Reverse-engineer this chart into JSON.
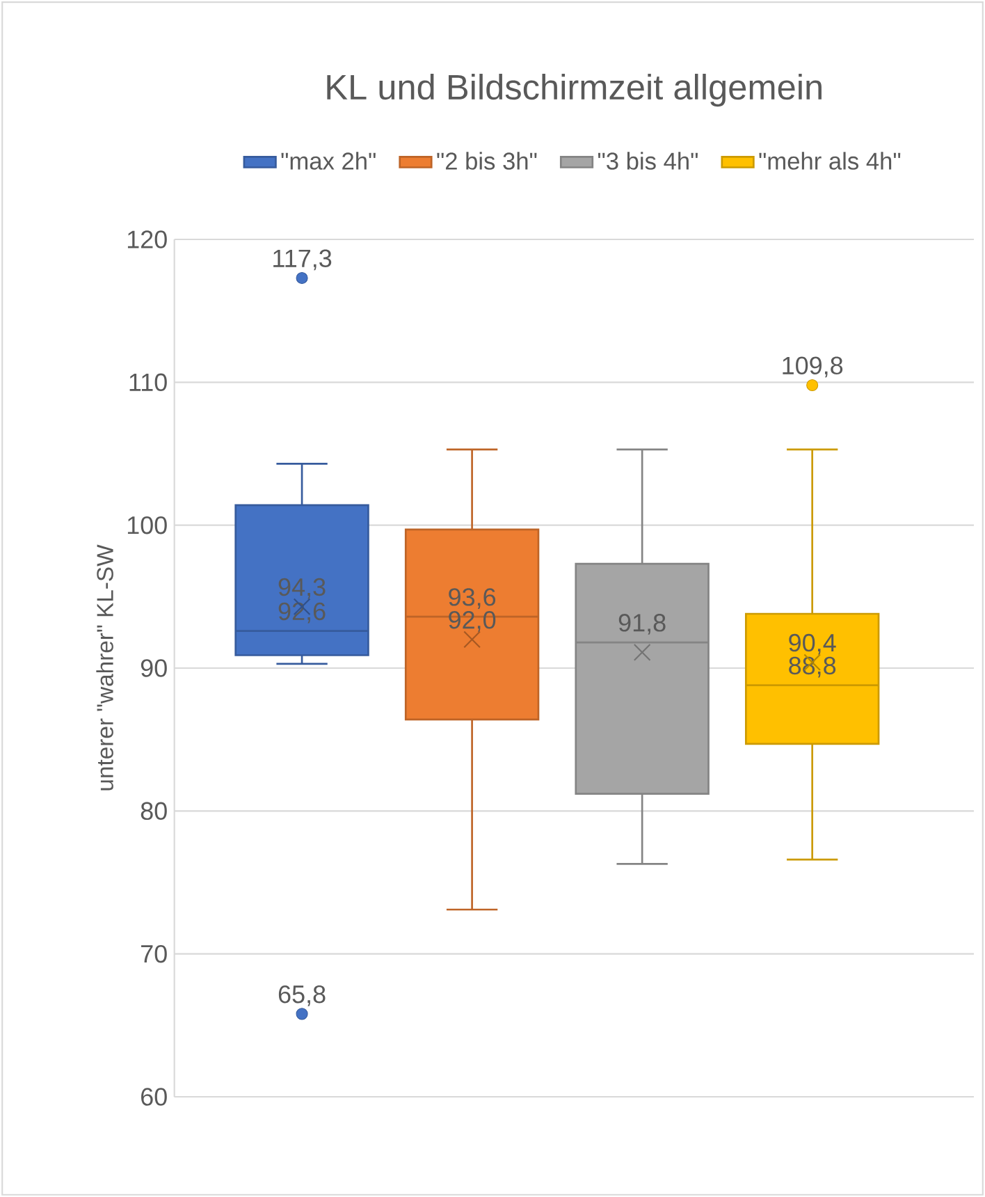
{
  "chart_data": {
    "type": "box",
    "title": "KL und Bildschirmzeit allgemein",
    "ylabel": "unterer \"wahrer\" KL-SW",
    "categories": [
      null
    ],
    "series": [
      {
        "name": "\"max 2h\"",
        "color": "#4472c4",
        "boxes": [
          {
            "low": 90.3,
            "q1": 90.9,
            "median": 92.6,
            "q3": 101.4,
            "high": 104.3,
            "mean": 94.3,
            "outliers": [
              117.3,
              65.8
            ]
          }
        ]
      },
      {
        "name": "\"2 bis 3h\"",
        "color": "#ed7d31",
        "boxes": [
          {
            "low": 73.1,
            "q1": 86.4,
            "median": 93.6,
            "q3": 99.7,
            "high": 105.3,
            "mean": 92.0
          }
        ]
      },
      {
        "name": "\"3 bis 4h\"",
        "color": "#a5a5a5",
        "boxes": [
          {
            "low": 76.3,
            "q1": 81.2,
            "median": 91.8,
            "q3": 97.3,
            "high": 105.3,
            "mean": 91.1
          }
        ]
      },
      {
        "name": "\"mehr als 4h\"",
        "color": "#ffc000",
        "boxes": [
          {
            "low": 76.6,
            "q1": 84.7,
            "median": 88.8,
            "q3": 93.8,
            "high": 105.3,
            "mean": 90.4,
            "outliers": [
              109.8
            ]
          }
        ]
      }
    ],
    "annotations": [
      "117,3",
      "65,8",
      "94,3",
      "92,6",
      "92,0",
      "93,6",
      "91,8",
      "109,8",
      "90,4",
      "88,8"
    ],
    "ylim": [
      60,
      120
    ],
    "yticks": [
      60,
      70,
      80,
      90,
      100,
      110,
      120
    ],
    "grid": "y",
    "legend": "top"
  }
}
